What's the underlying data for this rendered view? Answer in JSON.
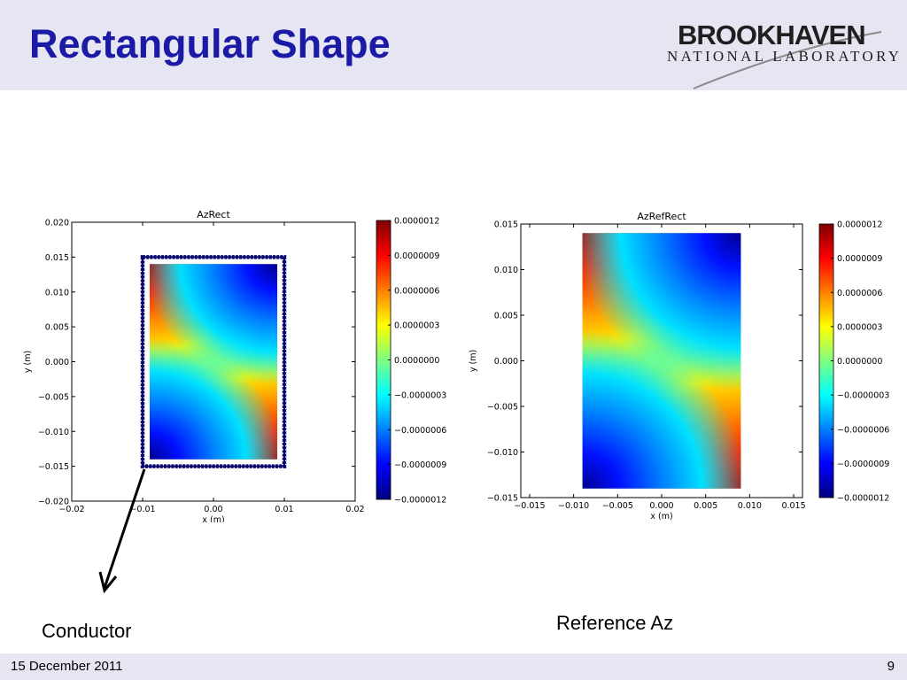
{
  "slide": {
    "title": "Rectangular Shape",
    "logo": {
      "name": "BROOKHAVEN",
      "subtitle": "NATIONAL LABORATORY"
    },
    "captions": {
      "left": "Conductor",
      "right": "Reference Az"
    },
    "footer": {
      "date": "15 December 2011",
      "page": "9"
    }
  },
  "chart_data": [
    {
      "type": "heatmap",
      "title": "AzRect",
      "xlabel": "x (m)",
      "ylabel": "y (m)",
      "xlim": [
        -0.02,
        0.02
      ],
      "ylim": [
        -0.02,
        0.02
      ],
      "xticks": [
        -0.02,
        -0.01,
        0.0,
        0.01,
        0.02
      ],
      "xtick_labels": [
        "−0.02",
        "−0.01",
        "0.00",
        "0.01",
        "0.02"
      ],
      "yticks": [
        -0.02,
        -0.015,
        -0.01,
        -0.005,
        0.0,
        0.005,
        0.01,
        0.015,
        0.02
      ],
      "ytick_labels": [
        "−0.020",
        "−0.015",
        "−0.010",
        "−0.005",
        "0.000",
        "0.005",
        "0.010",
        "0.015",
        "0.020"
      ],
      "field_region": {
        "x": [
          -0.009,
          0.009
        ],
        "y": [
          -0.014,
          0.014
        ]
      },
      "conductor": {
        "shape": "rectangle",
        "x": [
          -0.01,
          0.01
        ],
        "y": [
          -0.015,
          0.015
        ],
        "color": "#0a0a6e"
      },
      "colorbar": {
        "range": [
          -1.2e-06,
          1.2e-06
        ],
        "ticks": [
          1.2e-06,
          9e-07,
          6e-07,
          3e-07,
          0.0,
          -3e-07,
          -6e-07,
          -9e-07,
          -1.2e-06
        ],
        "tick_labels": [
          "0.0000012",
          "0.0000009",
          "0.0000006",
          "0.0000003",
          "0.0000000",
          "−0.0000003",
          "−0.0000006",
          "−0.0000009",
          "−0.0000012"
        ],
        "colormap": "jet"
      },
      "pattern": "quadrupole: positive at top-left and bottom-right, negative at top-right and bottom-left"
    },
    {
      "type": "heatmap",
      "title": "AzRefRect",
      "xlabel": "x (m)",
      "ylabel": "y (m)",
      "xlim": [
        -0.016,
        0.016
      ],
      "ylim": [
        -0.015,
        0.015
      ],
      "xticks": [
        -0.015,
        -0.01,
        -0.005,
        0.0,
        0.005,
        0.01,
        0.015
      ],
      "xtick_labels": [
        "−0.015",
        "−0.010",
        "−0.005",
        "0.000",
        "0.005",
        "0.010",
        "0.015"
      ],
      "yticks": [
        -0.015,
        -0.01,
        -0.005,
        0.0,
        0.005,
        0.01,
        0.015
      ],
      "ytick_labels": [
        "−0.015",
        "−0.010",
        "−0.005",
        "0.000",
        "0.005",
        "0.010",
        "0.015"
      ],
      "field_region": {
        "x": [
          -0.009,
          0.009
        ],
        "y": [
          -0.014,
          0.014
        ]
      },
      "colorbar": {
        "range": [
          -1.2e-06,
          1.2e-06
        ],
        "ticks": [
          1.2e-06,
          9e-07,
          6e-07,
          3e-07,
          0.0,
          -3e-07,
          -6e-07,
          -9e-07,
          -1.2e-06
        ],
        "tick_labels": [
          "0.0000012",
          "0.0000009",
          "0.0000006",
          "0.0000003",
          "0.0000000",
          "−0.0000003",
          "−0.0000006",
          "−0.0000009",
          "−0.0000012"
        ],
        "colormap": "jet"
      },
      "pattern": "quadrupole: positive at top-left and bottom-right, negative at top-right and bottom-left"
    }
  ]
}
